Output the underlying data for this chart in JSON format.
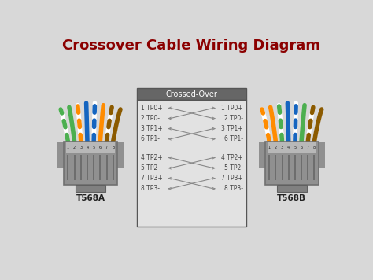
{
  "title": "Crossover Cable Wiring Diagram",
  "title_color": "#8B0000",
  "title_fontsize": 13,
  "bg_color": "#d8d8d8",
  "crossed_over_header": "Crossed-Over",
  "left_label": "T568A",
  "right_label": "T568B",
  "group1_left": [
    "1 TP0+",
    "2 TP0-",
    "3 TP1+",
    "6 TP1-"
  ],
  "group1_right": [
    "1 TP0+",
    "2 TP0-",
    "3 TP1+",
    "6 TP1-"
  ],
  "group2_left": [
    "4 TP2+",
    "5 TP2-",
    "7 TP3+",
    "8 TP3-"
  ],
  "group2_right": [
    "4 TP2+",
    "5 TP2-",
    "7 TP3+",
    "8 TP3-"
  ],
  "pin_numbers": [
    "1",
    "2",
    "3",
    "4",
    "5",
    "6",
    "7",
    "8"
  ],
  "text_color": "#444444",
  "line_color": "#888888",
  "t568a_colors": [
    "#4CAF50",
    "#FF8C00",
    "#FF8C00",
    "#1565C0",
    "#1565C0",
    "#FF8C00",
    "#7B3F00",
    "#7B3F00"
  ],
  "t568a_stripe": [
    false,
    false,
    true,
    false,
    true,
    true,
    false,
    true
  ],
  "t568b_colors": [
    "#FF8C00",
    "#FF8C00",
    "#4CAF50",
    "#1565C0",
    "#1565C0",
    "#4CAF50",
    "#7B3F00",
    "#7B3F00"
  ],
  "t568b_stripe": [
    false,
    true,
    false,
    false,
    true,
    true,
    true,
    false
  ]
}
